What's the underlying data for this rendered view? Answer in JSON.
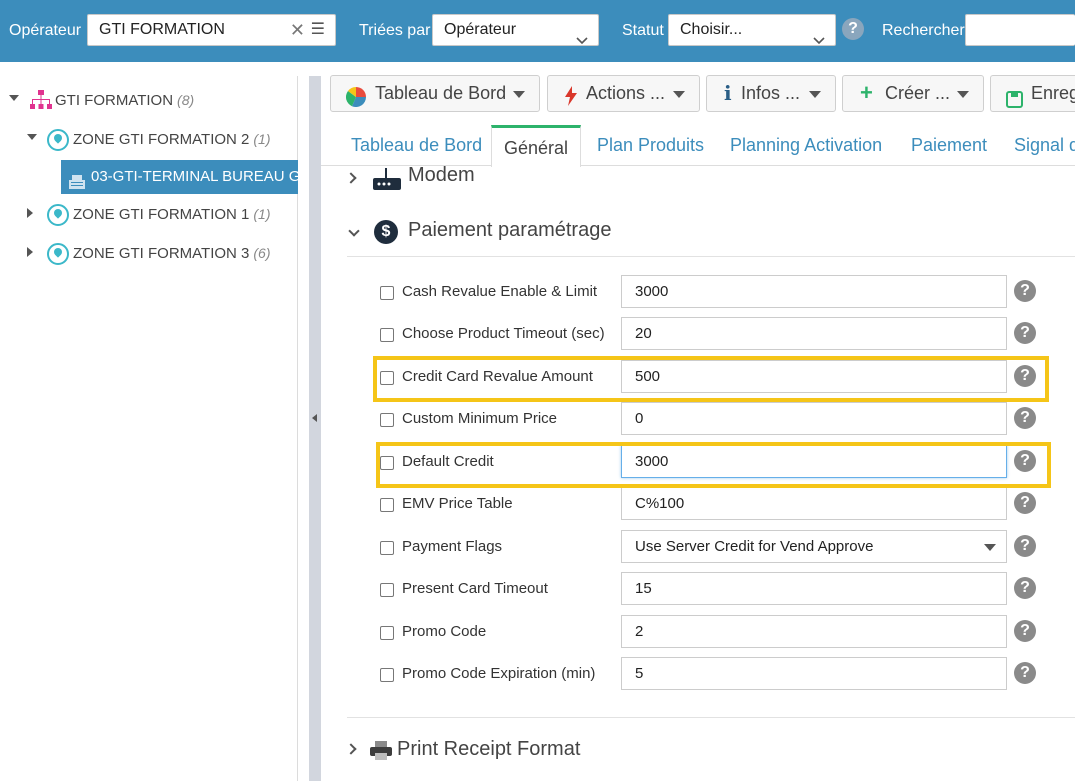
{
  "topbar": {
    "operator_label": "Opérateur",
    "operator_value": "GTI FORMATION",
    "sorted_label": "Triées par",
    "sorted_value": "Opérateur",
    "status_label": "Statut",
    "status_value": "Choisir...",
    "search_label": "Rechercher",
    "search_value": ""
  },
  "tree": {
    "root": {
      "label": "GTI FORMATION",
      "count": "(8)"
    },
    "zones": [
      {
        "label": "ZONE GTI FORMATION 2",
        "count": "(1)"
      },
      {
        "label": "ZONE GTI FORMATION 1",
        "count": "(1)"
      },
      {
        "label": "ZONE GTI FORMATION 3",
        "count": "(6)"
      }
    ],
    "selected_terminal": "03-GTI-TERMINAL BUREAU G"
  },
  "toolbar": {
    "dashboard": "Tableau de Bord",
    "actions": "Actions ...",
    "infos": "Infos ...",
    "create": "Créer ...",
    "save": "Enreg"
  },
  "tabs": [
    "Tableau de Bord",
    "Général",
    "Plan Produits",
    "Planning Activation",
    "Paiement",
    "Signal d"
  ],
  "sections": {
    "modem": "Modem",
    "payment": "Paiement paramétrage",
    "print": "Print Receipt Format"
  },
  "fields": [
    {
      "label": "Cash Revalue Enable & Limit",
      "value": "3000"
    },
    {
      "label": "Choose Product Timeout (sec)",
      "value": "20"
    },
    {
      "label": "Credit Card Revalue Amount",
      "value": "500"
    },
    {
      "label": "Custom Minimum Price",
      "value": "0"
    },
    {
      "label": "Default Credit",
      "value": "3000"
    },
    {
      "label": "EMV Price Table",
      "value": "C%100"
    },
    {
      "label": "Payment Flags",
      "value": "Use Server Credit for Vend Approve"
    },
    {
      "label": "Present Card Timeout",
      "value": "15"
    },
    {
      "label": "Promo Code",
      "value": "2"
    },
    {
      "label": "Promo Code Expiration (min)",
      "value": "5"
    }
  ],
  "colors": {
    "topbar": "#3c8dbc",
    "highlight": "#f5c518",
    "tab_active_border": "#2db36b",
    "zone_icon": "#3bb8c9",
    "operator_icon": "#e0338f"
  },
  "icons": {
    "help": "?",
    "dollar": "$"
  }
}
